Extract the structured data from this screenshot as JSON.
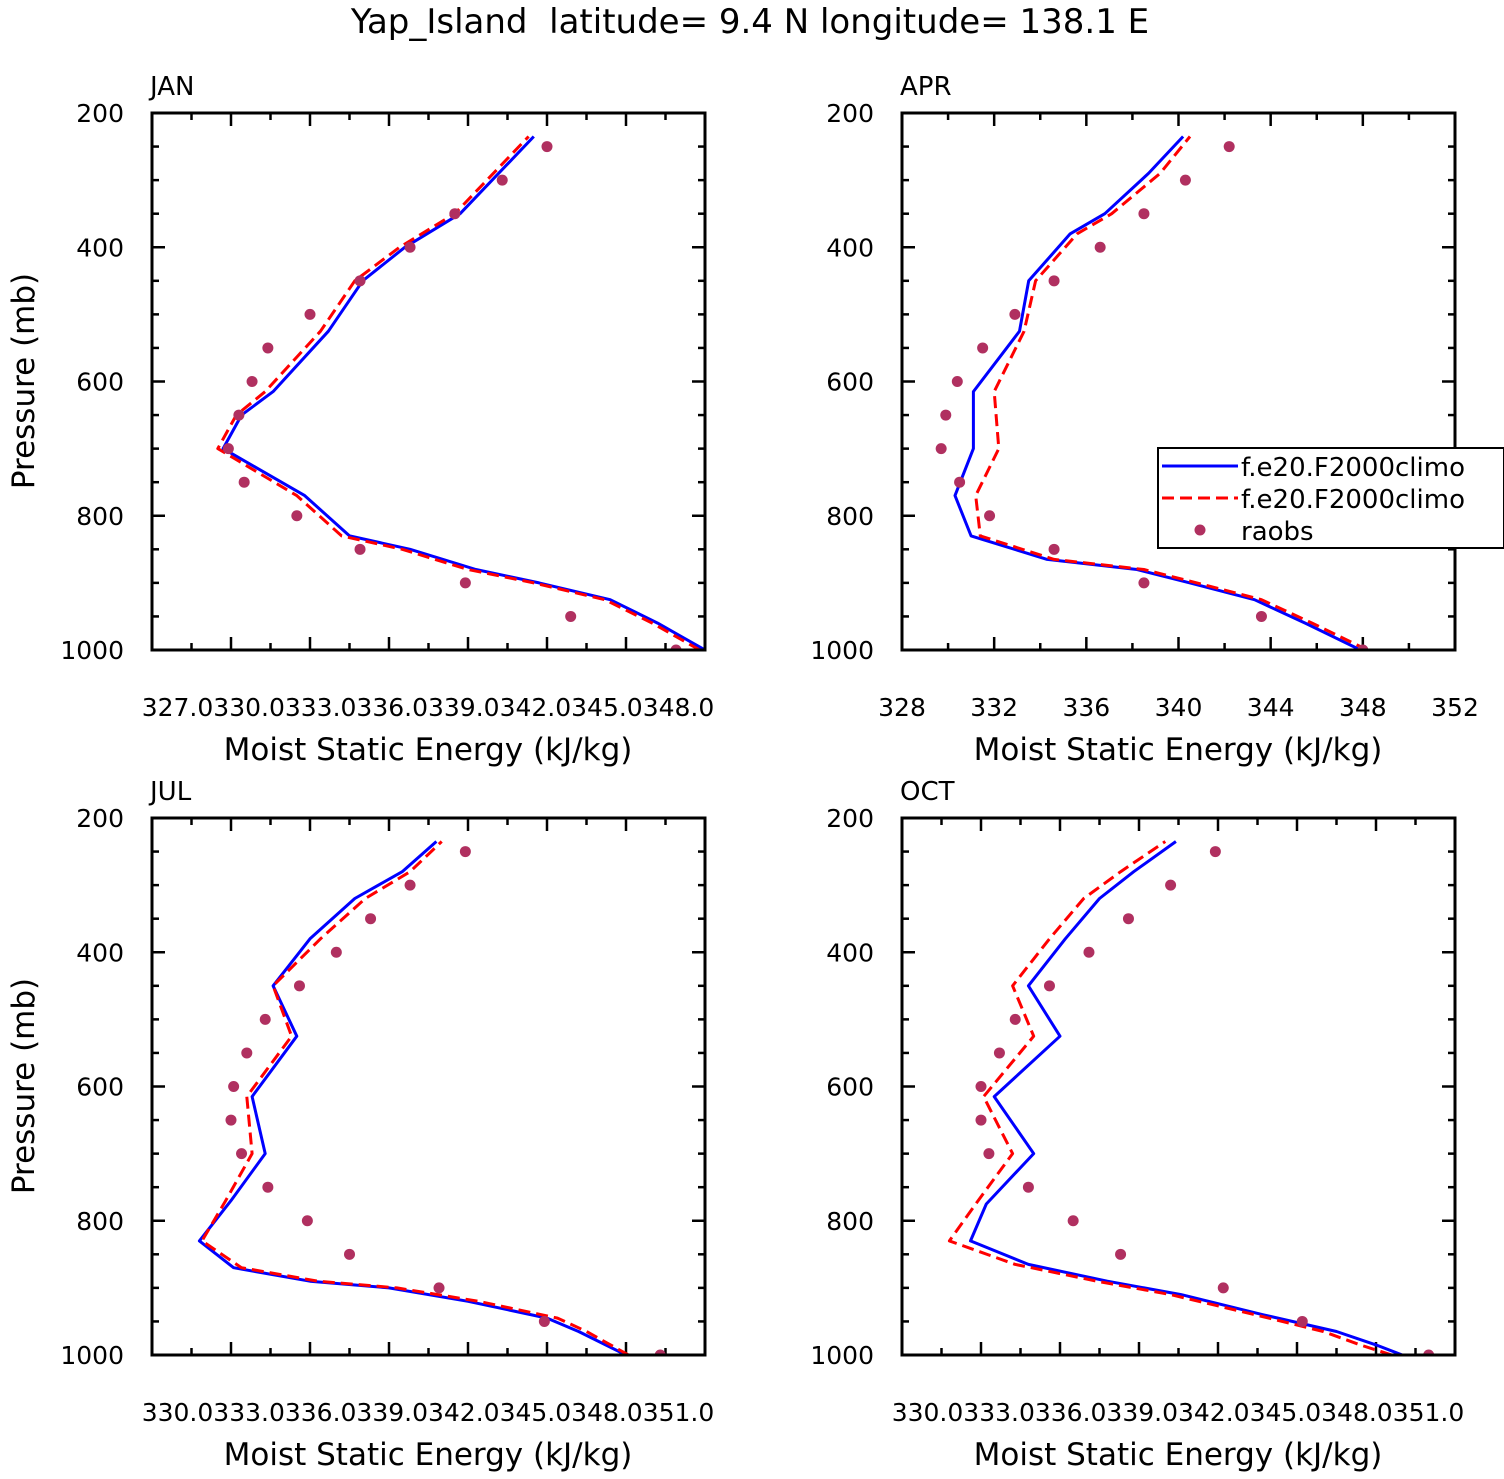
{
  "figure_title": "Yap_Island  latitude= 9.4 N longitude= 138.1 E",
  "colors": {
    "model1": "#0000ff",
    "model2": "#ff0000",
    "raobs": "#b03060"
  },
  "chart_data": [
    {
      "type": "line",
      "title": "JAN",
      "xlabel": "Moist Static Energy (kJ/kg)",
      "ylabel": "Pressure (mb)",
      "xlim": [
        327.0,
        348.0
      ],
      "ylim": [
        1000,
        200
      ],
      "y_inverted": true,
      "xtick_labels": [
        "327.0",
        "330.0",
        "333.0",
        "336.0",
        "339.0",
        "342.0",
        "345.0",
        "348.0"
      ],
      "xtick_label_text": "327.0330.0333.0336.0339.0342.0345.0348.0",
      "ytick_labels": [
        "200",
        "400",
        "600",
        "800",
        "1000"
      ],
      "legend": null,
      "series": [
        {
          "name": "",
          "kind": "line",
          "color": "#0000ff",
          "x": [
            348.0,
            346.2,
            344.4,
            341.7,
            339.3,
            336.8,
            334.5,
            332.8,
            329.7,
            330.4,
            331.6,
            333.7,
            335.0,
            336.6,
            338.7,
            341.5
          ],
          "y": [
            1000,
            960,
            925,
            900,
            880,
            850,
            830,
            770,
            700,
            650,
            615,
            525,
            450,
            400,
            350,
            235
          ]
        },
        {
          "name": "",
          "kind": "dashed",
          "color": "#ff0000",
          "x": [
            347.8,
            346.0,
            344.2,
            341.5,
            339.0,
            336.5,
            334.2,
            332.5,
            329.5,
            330.2,
            331.3,
            333.4,
            334.7,
            336.4,
            338.5,
            341.3
          ],
          "y": [
            1000,
            960,
            925,
            900,
            880,
            850,
            830,
            770,
            700,
            650,
            615,
            525,
            450,
            400,
            350,
            235
          ]
        },
        {
          "name": "",
          "kind": "dot",
          "color": "#b03060",
          "x": [
            346.9,
            342.9,
            338.9,
            334.9,
            332.5,
            330.5,
            329.9,
            330.3,
            330.8,
            331.4,
            333.0,
            334.9,
            336.8,
            338.5,
            340.3,
            342.0
          ],
          "y": [
            1000,
            950,
            900,
            850,
            800,
            750,
            700,
            650,
            600,
            550,
            500,
            450,
            400,
            350,
            300,
            250
          ]
        }
      ]
    },
    {
      "type": "line",
      "title": "APR",
      "xlabel": "Moist Static Energy (kJ/kg)",
      "ylabel": "",
      "xlim": [
        328,
        352
      ],
      "ylim": [
        1000,
        200
      ],
      "y_inverted": true,
      "xtick_labels": [
        "328",
        "332",
        "336",
        "340",
        "344",
        "348",
        "352"
      ],
      "ytick_labels": [
        "200",
        "400",
        "600",
        "800",
        "1000"
      ],
      "legend": [
        "f.e20.F2000climo",
        "f.e20.F2000climo",
        "raobs"
      ],
      "legend_position": "right, middle (clipped at panel edge)",
      "series": [
        {
          "name": "f.e20.F2000climo",
          "kind": "line",
          "color": "#0000ff",
          "x": [
            347.9,
            345.5,
            343.3,
            340.5,
            338.2,
            334.3,
            331.0,
            330.3,
            331.1,
            331.1,
            333.1,
            333.5,
            335.3,
            336.8,
            338.7,
            340.2
          ],
          "y": [
            1000,
            960,
            925,
            900,
            880,
            865,
            830,
            770,
            700,
            615,
            525,
            450,
            380,
            350,
            290,
            235
          ]
        },
        {
          "name": "f.e20.F2000climo",
          "kind": "dashed",
          "color": "#ff0000",
          "x": [
            348.2,
            345.8,
            343.6,
            340.8,
            338.5,
            334.6,
            331.4,
            331.2,
            332.2,
            332.0,
            333.3,
            333.8,
            335.6,
            337.1,
            339.2,
            340.5
          ],
          "y": [
            1000,
            960,
            925,
            900,
            880,
            865,
            830,
            770,
            700,
            615,
            525,
            450,
            380,
            350,
            290,
            235
          ]
        },
        {
          "name": "raobs",
          "kind": "dot",
          "color": "#b03060",
          "x": [
            348.0,
            343.6,
            338.5,
            334.6,
            331.8,
            330.5,
            329.7,
            329.9,
            330.4,
            331.5,
            332.9,
            334.6,
            336.6,
            338.5,
            340.3,
            342.2
          ],
          "y": [
            1000,
            950,
            900,
            850,
            800,
            750,
            700,
            650,
            600,
            550,
            500,
            450,
            400,
            350,
            300,
            250
          ]
        }
      ]
    },
    {
      "type": "line",
      "title": "JUL",
      "xlabel": "Moist Static Energy (kJ/kg)",
      "ylabel": "Pressure (mb)",
      "xlim": [
        330.0,
        351.0
      ],
      "ylim": [
        1000,
        200
      ],
      "y_inverted": true,
      "xtick_labels": [
        "330.0",
        "333.0",
        "336.0",
        "339.0",
        "342.0",
        "345.0",
        "348.0",
        "351.0"
      ],
      "xtick_label_text": "330.0333.0336.0339.0342.0345.0348.0351.0",
      "ytick_labels": [
        "200",
        "400",
        "600",
        "800",
        "1000"
      ],
      "legend": null,
      "series": [
        {
          "name": "",
          "kind": "line",
          "color": "#0000ff",
          "x": [
            348.0,
            346.2,
            345.0,
            342.0,
            339.0,
            336.0,
            333.1,
            331.8,
            333.0,
            334.3,
            333.8,
            335.5,
            334.6,
            336.0,
            337.7,
            339.5,
            340.8
          ],
          "y": [
            1000,
            965,
            945,
            920,
            900,
            890,
            870,
            830,
            770,
            700,
            615,
            525,
            450,
            380,
            320,
            280,
            235
          ]
        },
        {
          "name": "",
          "kind": "dashed",
          "color": "#ff0000",
          "x": [
            348.1,
            346.5,
            345.4,
            342.4,
            339.3,
            336.3,
            333.4,
            331.9,
            332.8,
            333.8,
            333.6,
            335.3,
            334.6,
            336.4,
            338.1,
            339.8,
            341.0
          ],
          "y": [
            1000,
            965,
            945,
            920,
            900,
            890,
            870,
            830,
            770,
            700,
            615,
            525,
            450,
            380,
            320,
            280,
            235
          ]
        },
        {
          "name": "",
          "kind": "dot",
          "color": "#b03060",
          "x": [
            349.3,
            344.9,
            340.9,
            337.5,
            335.9,
            334.4,
            333.4,
            333.0,
            333.1,
            333.6,
            334.3,
            335.6,
            337.0,
            338.3,
            339.8,
            341.9
          ],
          "y": [
            1000,
            950,
            900,
            850,
            800,
            750,
            700,
            650,
            600,
            550,
            500,
            450,
            400,
            350,
            300,
            250
          ]
        }
      ]
    },
    {
      "type": "line",
      "title": "OCT",
      "xlabel": "Moist Static Energy (kJ/kg)",
      "ylabel": "",
      "xlim": [
        330.0,
        351.0
      ],
      "ylim": [
        1000,
        200
      ],
      "y_inverted": true,
      "xtick_labels": [
        "330.0",
        "333.0",
        "336.0",
        "339.0",
        "342.0",
        "345.0",
        "348.0",
        "351.0"
      ],
      "xtick_label_text": "330.0333.0336.0339.0342.0345.0348.0351.0",
      "ytick_labels": [
        "200",
        "400",
        "600",
        "800",
        "1000"
      ],
      "legend": null,
      "series": [
        {
          "name": "",
          "kind": "line",
          "color": "#0000ff",
          "x": [
            349.0,
            348.0,
            346.5,
            343.7,
            340.6,
            337.8,
            334.8,
            332.6,
            333.2,
            335.0,
            333.5,
            336.0,
            334.8,
            336.2,
            337.5,
            338.8,
            340.4
          ],
          "y": [
            1000,
            985,
            965,
            940,
            910,
            890,
            865,
            830,
            775,
            700,
            615,
            525,
            450,
            380,
            320,
            280,
            235
          ]
        },
        {
          "name": "",
          "kind": "dashed",
          "color": "#ff0000",
          "x": [
            348.6,
            347.4,
            346.0,
            343.4,
            340.2,
            337.4,
            334.3,
            331.8,
            332.8,
            334.2,
            333.1,
            335.0,
            334.2,
            335.6,
            336.9,
            338.3,
            340.0
          ],
          "y": [
            1000,
            985,
            965,
            940,
            910,
            890,
            865,
            830,
            775,
            700,
            615,
            525,
            450,
            380,
            320,
            280,
            235
          ]
        },
        {
          "name": "",
          "kind": "dot",
          "color": "#b03060",
          "x": [
            350.0,
            345.2,
            342.2,
            338.3,
            336.5,
            334.8,
            333.3,
            333.0,
            333.0,
            333.7,
            334.3,
            335.6,
            337.1,
            338.6,
            340.2,
            341.9
          ],
          "y": [
            1000,
            950,
            900,
            850,
            800,
            750,
            700,
            650,
            600,
            550,
            500,
            450,
            400,
            350,
            300,
            250
          ]
        }
      ]
    }
  ]
}
